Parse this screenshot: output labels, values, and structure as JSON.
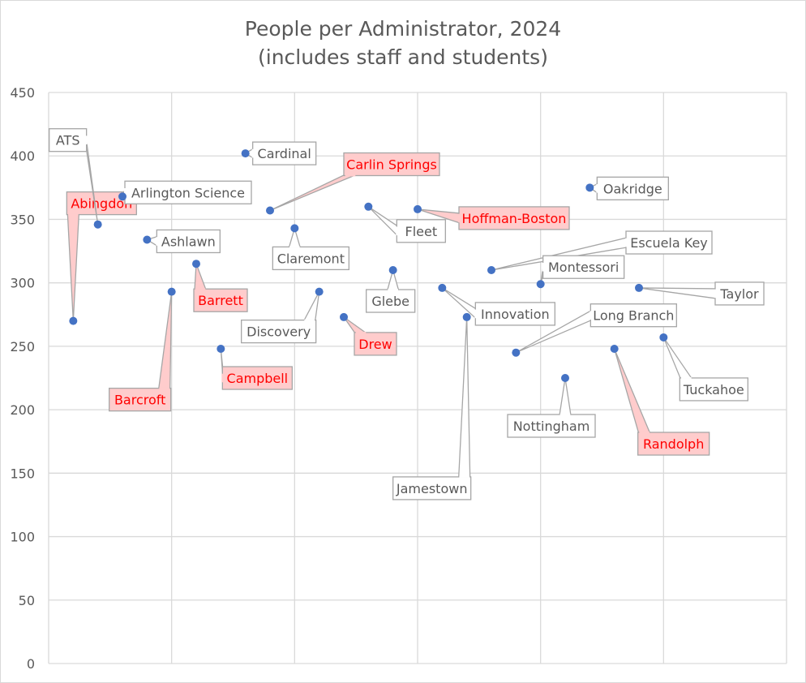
{
  "chart_data": {
    "type": "scatter",
    "title": "People per Administrator, 2024",
    "subtitle": "(includes staff and students)",
    "ylim": [
      0,
      450
    ],
    "xlim": [
      0,
      30
    ],
    "y_ticks": [
      "0",
      "50",
      "100",
      "150",
      "200",
      "250",
      "300",
      "350",
      "400",
      "450"
    ],
    "grid": true,
    "colors": {
      "marker": "#4472C4",
      "highlight_fill": "#FFCCCC",
      "highlight_text": "#FF0000",
      "label_text": "#595959",
      "box_border": "#A6A6A6",
      "grid": "#D9D9D9"
    },
    "points": [
      {
        "label": "Abingdon",
        "x": 1,
        "y": 270,
        "highlight": true
      },
      {
        "label": "ATS",
        "x": 2,
        "y": 346,
        "highlight": false
      },
      {
        "label": "Arlington Science",
        "x": 3,
        "y": 368,
        "highlight": false
      },
      {
        "label": "Ashlawn",
        "x": 4,
        "y": 334,
        "highlight": false
      },
      {
        "label": "Barcroft",
        "x": 5,
        "y": 293,
        "highlight": true
      },
      {
        "label": "Barrett",
        "x": 6,
        "y": 315,
        "highlight": true
      },
      {
        "label": "Campbell",
        "x": 7,
        "y": 248,
        "highlight": true
      },
      {
        "label": "Cardinal",
        "x": 8,
        "y": 402,
        "highlight": false
      },
      {
        "label": "Carlin Springs",
        "x": 9,
        "y": 357,
        "highlight": true
      },
      {
        "label": "Claremont",
        "x": 10,
        "y": 343,
        "highlight": false
      },
      {
        "label": "Discovery",
        "x": 11,
        "y": 293,
        "highlight": false
      },
      {
        "label": "Drew",
        "x": 12,
        "y": 273,
        "highlight": true
      },
      {
        "label": "Fleet",
        "x": 13,
        "y": 360,
        "highlight": false
      },
      {
        "label": "Glebe",
        "x": 14,
        "y": 310,
        "highlight": false
      },
      {
        "label": "Hoffman-Boston",
        "x": 15,
        "y": 358,
        "highlight": true
      },
      {
        "label": "Innovation",
        "x": 16,
        "y": 296,
        "highlight": false
      },
      {
        "label": "Jamestown",
        "x": 17,
        "y": 273,
        "highlight": false
      },
      {
        "label": "Escuela Key",
        "x": 18,
        "y": 310,
        "highlight": false
      },
      {
        "label": "Long Branch",
        "x": 19,
        "y": 245,
        "highlight": false
      },
      {
        "label": "Montessori",
        "x": 20,
        "y": 299,
        "highlight": false
      },
      {
        "label": "Nottingham",
        "x": 21,
        "y": 225,
        "highlight": false
      },
      {
        "label": "Oakridge",
        "x": 22,
        "y": 375,
        "highlight": false
      },
      {
        "label": "Randolph",
        "x": 23,
        "y": 248,
        "highlight": true
      },
      {
        "label": "Taylor",
        "x": 24,
        "y": 296,
        "highlight": false
      },
      {
        "label": "Tuckahoe",
        "x": 25,
        "y": 257,
        "highlight": false
      }
    ]
  }
}
